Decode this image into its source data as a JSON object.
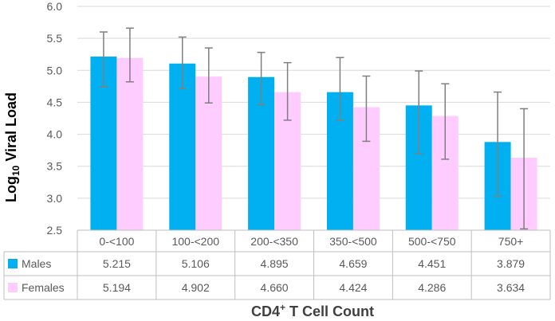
{
  "chart_data": {
    "type": "bar",
    "ylabel_main": "Log",
    "ylabel_sub": "10",
    "ylabel_rest": " Viral Load",
    "xlabel_main": "CD4",
    "xlabel_sup": "+",
    "xlabel_rest": " T Cell Count",
    "ylim": [
      2.5,
      6.0
    ],
    "yticks": [
      "2.5",
      "3.0",
      "3.5",
      "4.0",
      "4.5",
      "5.0",
      "5.5",
      "6.0"
    ],
    "categories": [
      "0-<100",
      "100-<200",
      "200-<350",
      "350-<500",
      "500-<750",
      "750+"
    ],
    "series": [
      {
        "name": "Males",
        "color": "#00b0f0",
        "values": [
          5.215,
          5.106,
          4.895,
          4.659,
          4.451,
          3.879
        ],
        "labels": [
          "5.215",
          "5.106",
          "4.895",
          "4.659",
          "4.451",
          "3.879"
        ],
        "err_low": [
          4.74,
          4.72,
          4.46,
          4.22,
          3.7,
          3.03
        ],
        "err_high": [
          5.6,
          5.52,
          5.28,
          5.2,
          4.99,
          4.66
        ]
      },
      {
        "name": "Females",
        "color": "#ffccff",
        "values": [
          5.194,
          4.902,
          4.66,
          4.424,
          4.286,
          3.634
        ],
        "labels": [
          "5.194",
          "4.902",
          "4.660",
          "4.424",
          "4.286",
          "3.634"
        ],
        "err_low": [
          4.82,
          4.49,
          4.22,
          3.89,
          3.61,
          2.52
        ],
        "err_high": [
          5.66,
          5.35,
          5.12,
          4.91,
          4.79,
          4.4
        ]
      }
    ]
  }
}
